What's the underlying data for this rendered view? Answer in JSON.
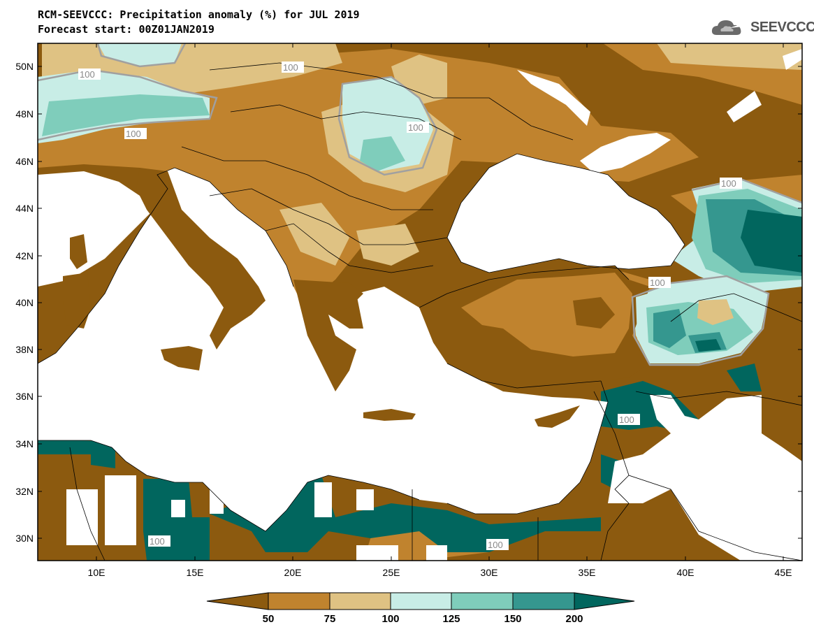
{
  "header": {
    "title": "RCM-SEEVCCC: Precipitation anomaly (%) for JUL 2019",
    "subtitle": "Forecast start: 00Z01JAN2019",
    "logo_text": "SEEVCCC"
  },
  "map": {
    "lon_range": [
      7,
      46
    ],
    "lat_range": [
      29,
      51
    ],
    "lat_ticks": [
      "50N",
      "48N",
      "46N",
      "44N",
      "42N",
      "40N",
      "38N",
      "36N",
      "34N",
      "32N",
      "30N"
    ],
    "lon_ticks": [
      "10E",
      "15E",
      "20E",
      "25E",
      "30E",
      "35E",
      "40E",
      "45E"
    ],
    "contour_labels": [
      "100",
      "100",
      "100",
      "100",
      "100",
      "100",
      "100",
      "100",
      "100"
    ]
  },
  "colorbar": {
    "colors": [
      "#8c5a0f",
      "#c0832e",
      "#dfc283",
      "#c8ede6",
      "#7fcdbb",
      "#35978f",
      "#01665e"
    ],
    "labels": [
      "50",
      "75",
      "100",
      "125",
      "150",
      "200"
    ]
  }
}
